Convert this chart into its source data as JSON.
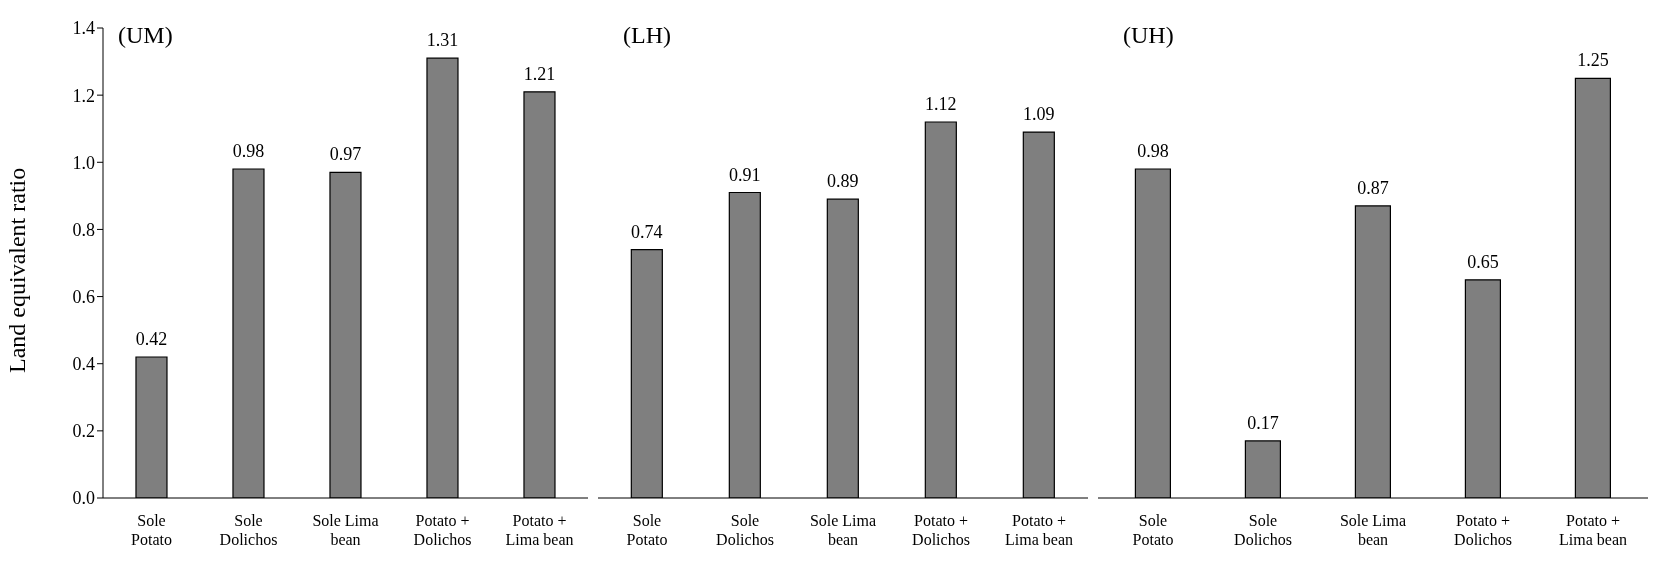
{
  "chart_data": [
    {
      "type": "bar",
      "title": "(UM)",
      "ylabel": "Land equivalent ratio",
      "categories": [
        "Sole Potato",
        "Sole Dolichos",
        "Sole Lima bean",
        "Potato + Dolichos",
        "Potato + Lima bean"
      ],
      "values": [
        0.42,
        0.98,
        0.97,
        1.31,
        1.21
      ],
      "color": "#7f7f7f",
      "ylim": [
        0,
        1.4
      ],
      "yticks": [
        {
          "value": 0,
          "label": "0.0"
        },
        {
          "value": 0.2,
          "label": "0.2"
        },
        {
          "value": 0.4,
          "label": "0.4"
        },
        {
          "value": 0.6,
          "label": "0.6"
        },
        {
          "value": 0.8,
          "label": "0.8"
        },
        {
          "value": 1,
          "label": "1.0"
        },
        {
          "value": 1.2,
          "label": "1.2"
        },
        {
          "value": 1.4,
          "label": "1.4"
        }
      ],
      "data_labels": true
    },
    {
      "type": "bar",
      "title": "(LH)",
      "categories": [
        "Sole Potato",
        "Sole Dolichos",
        "Sole Lima bean",
        "Potato + Dolichos",
        "Potato + Lima bean"
      ],
      "values": [
        0.74,
        0.91,
        0.89,
        1.12,
        1.09
      ],
      "color": "#7f7f7f",
      "ylim": [
        0,
        1.4
      ],
      "tick_labels": "x",
      "data_labels": true
    },
    {
      "type": "bar",
      "title": "(UH)",
      "categories": [
        "Sole Potato",
        "Sole Dolichos",
        "Sole Lima bean",
        "Potato + Dolichos",
        "Potato + Lima bean"
      ],
      "values": [
        0.98,
        0.17,
        0.87,
        0.65,
        1.25
      ],
      "color": "#7f7f7f",
      "ylim": [
        0,
        1.4
      ],
      "tick_labels": "x",
      "data_labels": true
    }
  ]
}
